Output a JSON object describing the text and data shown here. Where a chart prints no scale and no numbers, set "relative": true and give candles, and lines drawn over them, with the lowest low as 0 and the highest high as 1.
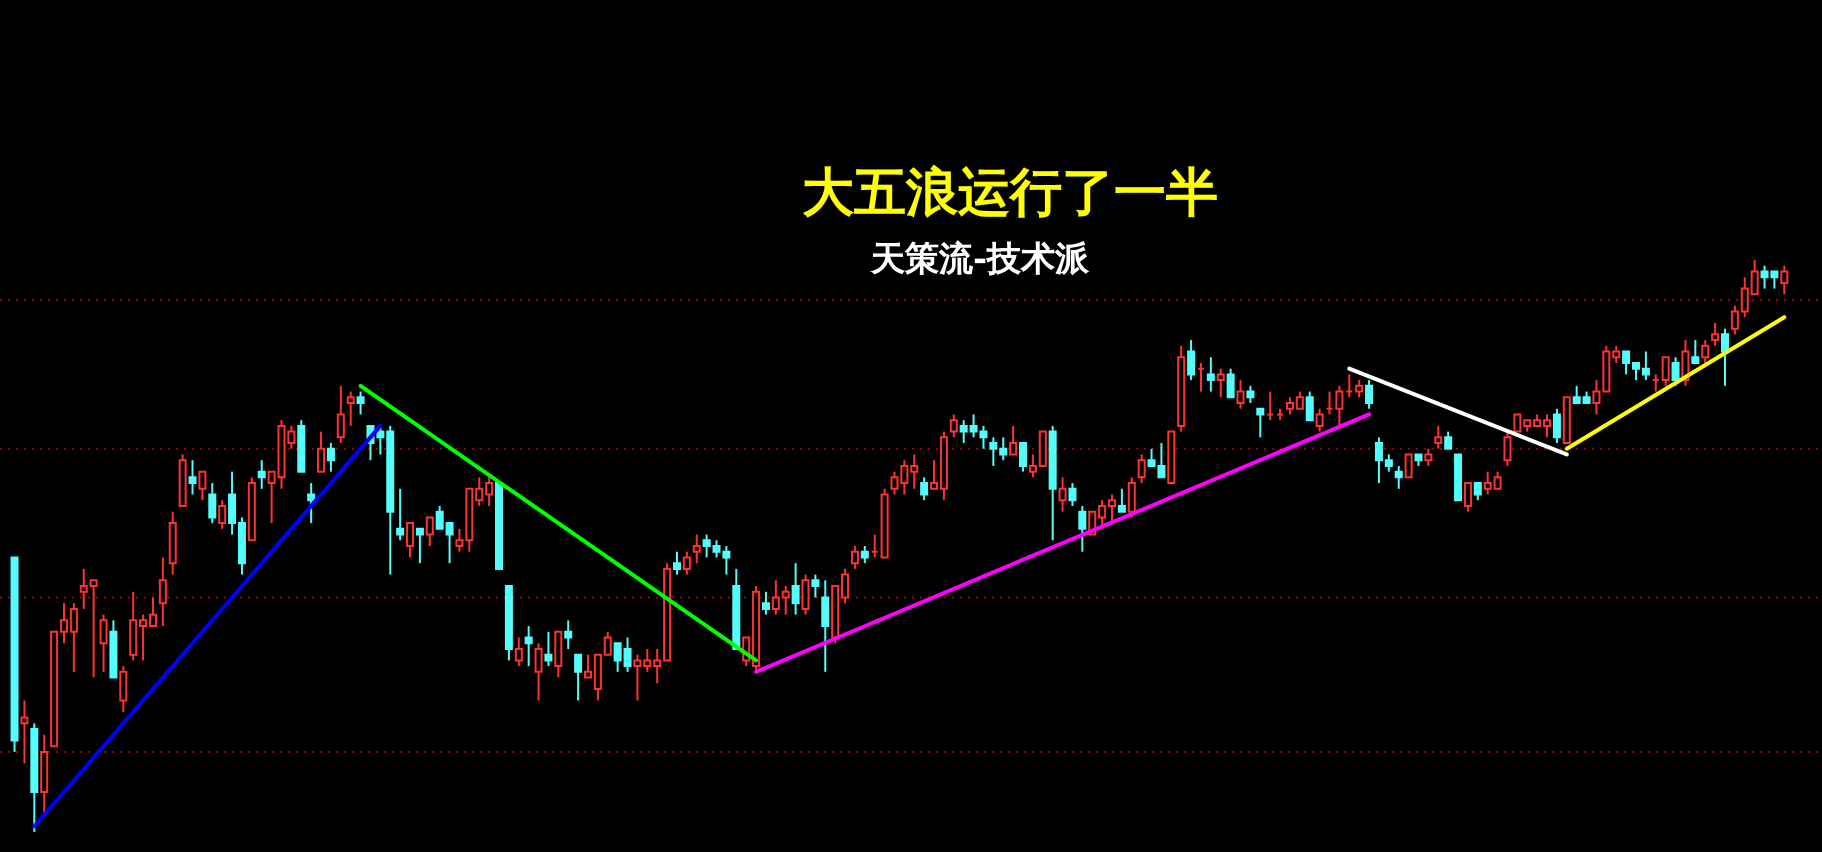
{
  "chart_data": {
    "type": "candlestick",
    "title": "大五浪运行了一半",
    "subtitle": "天策流-技术派",
    "relative": true,
    "categories": [
      null,
      null,
      null,
      null,
      null,
      null,
      null,
      null,
      null,
      null,
      null,
      null,
      null,
      null,
      null,
      null,
      null,
      null,
      null,
      null,
      null,
      null,
      null,
      null,
      null,
      null,
      null,
      null,
      null,
      null,
      null,
      null,
      null,
      null,
      null,
      null,
      null,
      null,
      null,
      null,
      null,
      null,
      null,
      null,
      null,
      null,
      null,
      null,
      null,
      null,
      null,
      null,
      null,
      null,
      null,
      null,
      null,
      null,
      null,
      null,
      null,
      null,
      null,
      null,
      null,
      null,
      null,
      null,
      null,
      null,
      null,
      null,
      null,
      null,
      null,
      null,
      null,
      null,
      null,
      null,
      null,
      null,
      null,
      null,
      null,
      null,
      null,
      null,
      null,
      null,
      null,
      null,
      null,
      null,
      null,
      null,
      null,
      null,
      null,
      null,
      null,
      null,
      null,
      null,
      null,
      null,
      null,
      null,
      null,
      null,
      null,
      null,
      null,
      null,
      null,
      null,
      null,
      null,
      null,
      null,
      null,
      null,
      null,
      null,
      null,
      null,
      null,
      null,
      null,
      null,
      null,
      null,
      null,
      null,
      null,
      null,
      null,
      null,
      null,
      null,
      null,
      null,
      null,
      null,
      null,
      null,
      null,
      null,
      null,
      null,
      null,
      null,
      null,
      null,
      null,
      null,
      null,
      null,
      null,
      null,
      null,
      null,
      null,
      null,
      null,
      null,
      null,
      null,
      null,
      null,
      null,
      null,
      null,
      null,
      null,
      null,
      null,
      null,
      null,
      null
    ],
    "ohlc": [
      [
        0.48,
        0.48,
        0.14,
        0.16
      ],
      [
        0.19,
        0.23,
        0.12,
        0.2
      ],
      [
        0.18,
        0.19,
        0,
        0.07
      ],
      [
        0.07,
        0.17,
        0.03,
        0.14
      ],
      [
        0.15,
        0.35,
        0.15,
        0.35
      ],
      [
        0.35,
        0.4,
        0.33,
        0.37
      ],
      [
        0.35,
        0.4,
        0.28,
        0.39
      ],
      [
        0.42,
        0.46,
        0.39,
        0.43
      ],
      [
        0.43,
        0.44,
        0.27,
        0.44
      ],
      [
        0.33,
        0.38,
        0.28,
        0.37
      ],
      [
        0.35,
        0.37,
        0.27,
        0.27
      ],
      [
        0.23,
        0.29,
        0.21,
        0.28
      ],
      [
        0.31,
        0.42,
        0.3,
        0.37
      ],
      [
        0.36,
        0.38,
        0.3,
        0.37
      ],
      [
        0.36,
        0.41,
        0.36,
        0.38
      ],
      [
        0.4,
        0.48,
        0.36,
        0.44
      ],
      [
        0.47,
        0.56,
        0.45,
        0.54
      ],
      [
        0.57,
        0.66,
        0.57,
        0.65
      ],
      [
        0.62,
        0.65,
        0.59,
        0.61
      ],
      [
        0.6,
        0.63,
        0.58,
        0.63
      ],
      [
        0.59,
        0.61,
        0.54,
        0.55
      ],
      [
        0.54,
        0.58,
        0.53,
        0.57
      ],
      [
        0.59,
        0.63,
        0.52,
        0.54
      ],
      [
        0.54,
        0.55,
        0.45,
        0.47
      ],
      [
        0.51,
        0.62,
        0.51,
        0.61
      ],
      [
        0.63,
        0.65,
        0.6,
        0.62
      ],
      [
        0.61,
        0.63,
        0.54,
        0.63
      ],
      [
        0.62,
        0.72,
        0.6,
        0.71
      ],
      [
        0.68,
        0.71,
        0.67,
        0.7
      ],
      [
        0.71,
        0.72,
        0.63,
        0.63
      ],
      [
        0.59,
        0.61,
        0.54,
        0.58
      ],
      [
        0.63,
        0.7,
        0.63,
        0.67
      ],
      [
        0.67,
        0.68,
        0.63,
        0.65
      ],
      [
        0.69,
        0.78,
        0.68,
        0.73
      ],
      [
        0.75,
        0.77,
        0.71,
        0.76
      ],
      [
        0.76,
        0.77,
        0.73,
        0.75
      ],
      [
        0.71,
        0.71,
        0.65,
        0.68
      ],
      [
        0.7,
        0.71,
        0.66,
        0.69
      ],
      [
        0.7,
        0.71,
        0.45,
        0.56
      ],
      [
        0.53,
        0.6,
        0.51,
        0.52
      ],
      [
        0.5,
        0.54,
        0.48,
        0.54
      ],
      [
        0.53,
        0.53,
        0.47,
        0.52
      ],
      [
        0.52,
        0.55,
        0.5,
        0.55
      ],
      [
        0.56,
        0.57,
        0.53,
        0.53
      ],
      [
        0.54,
        0.54,
        0.47,
        0.52
      ],
      [
        0.5,
        0.53,
        0.49,
        0.51
      ],
      [
        0.51,
        0.6,
        0.49,
        0.6
      ],
      [
        0.58,
        0.62,
        0.57,
        0.6
      ],
      [
        0.59,
        0.62,
        0.57,
        0.61
      ],
      [
        0.61,
        0.61,
        0.46,
        0.46
      ],
      [
        0.43,
        0.43,
        0.3,
        0.32
      ],
      [
        0.3,
        0.34,
        0.29,
        0.32
      ],
      [
        0.34,
        0.36,
        0.29,
        0.33
      ],
      [
        0.28,
        0.33,
        0.23,
        0.32
      ],
      [
        0.31,
        0.35,
        0.29,
        0.3
      ],
      [
        0.29,
        0.35,
        0.27,
        0.35
      ],
      [
        0.35,
        0.37,
        0.32,
        0.34
      ],
      [
        0.31,
        0.31,
        0.23,
        0.28
      ],
      [
        0.27,
        0.31,
        0.27,
        0.28
      ],
      [
        0.25,
        0.31,
        0.23,
        0.31
      ],
      [
        0.31,
        0.35,
        0.31,
        0.34
      ],
      [
        0.33,
        0.33,
        0.28,
        0.3
      ],
      [
        0.32,
        0.34,
        0.28,
        0.29
      ],
      [
        0.29,
        0.31,
        0.23,
        0.3
      ],
      [
        0.29,
        0.32,
        0.28,
        0.3
      ],
      [
        0.29,
        0.32,
        0.26,
        0.3
      ],
      [
        0.3,
        0.47,
        0.3,
        0.46
      ],
      [
        0.47,
        0.49,
        0.45,
        0.46
      ],
      [
        0.46,
        0.49,
        0.45,
        0.48
      ],
      [
        0.49,
        0.52,
        0.47,
        0.5
      ],
      [
        0.51,
        0.52,
        0.48,
        0.5
      ],
      [
        0.5,
        0.51,
        0.48,
        0.49
      ],
      [
        0.49,
        0.5,
        0.45,
        0.48
      ],
      [
        0.43,
        0.46,
        0.32,
        0.32
      ],
      [
        0.3,
        0.34,
        0.29,
        0.34
      ],
      [
        0.29,
        0.43,
        0.28,
        0.42
      ],
      [
        0.4,
        0.42,
        0.38,
        0.39
      ],
      [
        0.39,
        0.44,
        0.38,
        0.41
      ],
      [
        0.41,
        0.43,
        0.38,
        0.42
      ],
      [
        0.43,
        0.47,
        0.38,
        0.4
      ],
      [
        0.39,
        0.45,
        0.38,
        0.44
      ],
      [
        0.44,
        0.45,
        0.41,
        0.43
      ],
      [
        0.41,
        0.44,
        0.28,
        0.36
      ],
      [
        0.34,
        0.43,
        0.33,
        0.43
      ],
      [
        0.41,
        0.46,
        0.4,
        0.45
      ],
      [
        0.47,
        0.5,
        0.46,
        0.49
      ],
      [
        0.49,
        0.5,
        0.47,
        0.48
      ],
      [
        0.49,
        0.52,
        0.48,
        0.49
      ],
      [
        0.48,
        0.6,
        0.48,
        0.59
      ],
      [
        0.6,
        0.63,
        0.59,
        0.62
      ],
      [
        0.61,
        0.65,
        0.59,
        0.64
      ],
      [
        0.63,
        0.66,
        0.6,
        0.64
      ],
      [
        0.61,
        0.62,
        0.58,
        0.59
      ],
      [
        0.6,
        0.65,
        0.6,
        0.61
      ],
      [
        0.6,
        0.7,
        0.58,
        0.69
      ],
      [
        0.7,
        0.73,
        0.69,
        0.72
      ],
      [
        0.71,
        0.72,
        0.68,
        0.7
      ],
      [
        0.71,
        0.73,
        0.69,
        0.7
      ],
      [
        0.7,
        0.71,
        0.67,
        0.69
      ],
      [
        0.68,
        0.69,
        0.64,
        0.67
      ],
      [
        0.67,
        0.69,
        0.65,
        0.66
      ],
      [
        0.66,
        0.71,
        0.66,
        0.68
      ],
      [
        0.68,
        0.68,
        0.63,
        0.64
      ],
      [
        0.63,
        0.66,
        0.62,
        0.64
      ],
      [
        0.64,
        0.7,
        0.64,
        0.7
      ],
      [
        0.7,
        0.71,
        0.51,
        0.6
      ],
      [
        0.58,
        0.62,
        0.56,
        0.6
      ],
      [
        0.6,
        0.61,
        0.57,
        0.58
      ],
      [
        0.56,
        0.57,
        0.49,
        0.53
      ],
      [
        0.52,
        0.56,
        0.52,
        0.56
      ],
      [
        0.55,
        0.58,
        0.53,
        0.57
      ],
      [
        0.57,
        0.59,
        0.54,
        0.58
      ],
      [
        0.57,
        0.6,
        0.56,
        0.56
      ],
      [
        0.56,
        0.62,
        0.55,
        0.61
      ],
      [
        0.62,
        0.66,
        0.61,
        0.65
      ],
      [
        0.65,
        0.67,
        0.64,
        0.64
      ],
      [
        0.64,
        0.68,
        0.62,
        0.62
      ],
      [
        0.61,
        0.7,
        0.61,
        0.7
      ],
      [
        0.71,
        0.85,
        0.7,
        0.83
      ],
      [
        0.84,
        0.86,
        0.79,
        0.8
      ],
      [
        0.81,
        0.82,
        0.77,
        0.81
      ],
      [
        0.8,
        0.83,
        0.77,
        0.79
      ],
      [
        0.79,
        0.81,
        0.76,
        0.8
      ],
      [
        0.8,
        0.81,
        0.76,
        0.76
      ],
      [
        0.75,
        0.79,
        0.74,
        0.77
      ],
      [
        0.77,
        0.78,
        0.75,
        0.76
      ],
      [
        0.74,
        0.74,
        0.69,
        0.73
      ],
      [
        0.73,
        0.77,
        0.72,
        0.73
      ],
      [
        0.73,
        0.74,
        0.72,
        0.73
      ],
      [
        0.74,
        0.76,
        0.73,
        0.75
      ],
      [
        0.74,
        0.77,
        0.74,
        0.76
      ],
      [
        0.76,
        0.77,
        0.72,
        0.72
      ],
      [
        0.71,
        0.74,
        0.7,
        0.73
      ],
      [
        0.74,
        0.77,
        0.73,
        0.74
      ],
      [
        0.74,
        0.78,
        0.71,
        0.77
      ],
      [
        0.77,
        0.8,
        0.76,
        0.77
      ],
      [
        0.77,
        0.79,
        0.76,
        0.78
      ],
      [
        0.78,
        0.79,
        0.74,
        0.75
      ],
      [
        0.68,
        0.69,
        0.61,
        0.65
      ],
      [
        0.65,
        0.66,
        0.63,
        0.64
      ],
      [
        0.63,
        0.64,
        0.6,
        0.62
      ],
      [
        0.62,
        0.66,
        0.62,
        0.66
      ],
      [
        0.66,
        0.66,
        0.64,
        0.65
      ],
      [
        0.65,
        0.67,
        0.64,
        0.66
      ],
      [
        0.68,
        0.71,
        0.67,
        0.69
      ],
      [
        0.69,
        0.7,
        0.67,
        0.67
      ],
      [
        0.66,
        0.66,
        0.58,
        0.58
      ],
      [
        0.57,
        0.61,
        0.56,
        0.61
      ],
      [
        0.61,
        0.61,
        0.58,
        0.59
      ],
      [
        0.6,
        0.63,
        0.59,
        0.61
      ],
      [
        0.6,
        0.63,
        0.6,
        0.62
      ],
      [
        0.65,
        0.7,
        0.64,
        0.69
      ],
      [
        0.7,
        0.73,
        0.7,
        0.73
      ],
      [
        0.71,
        0.72,
        0.7,
        0.72
      ],
      [
        0.71,
        0.73,
        0.71,
        0.72
      ],
      [
        0.71,
        0.73,
        0.69,
        0.72
      ],
      [
        0.73,
        0.74,
        0.68,
        0.69
      ],
      [
        0.68,
        0.76,
        0.68,
        0.76
      ],
      [
        0.76,
        0.78,
        0.75,
        0.75
      ],
      [
        0.76,
        0.77,
        0.75,
        0.75
      ],
      [
        0.75,
        0.79,
        0.73,
        0.77
      ],
      [
        0.77,
        0.85,
        0.77,
        0.84
      ],
      [
        0.83,
        0.85,
        0.82,
        0.84
      ],
      [
        0.84,
        0.84,
        0.8,
        0.82
      ],
      [
        0.82,
        0.82,
        0.79,
        0.81
      ],
      [
        0.81,
        0.84,
        0.79,
        0.8
      ],
      [
        0.79,
        0.8,
        0.77,
        0.79
      ],
      [
        0.79,
        0.83,
        0.78,
        0.83
      ],
      [
        0.82,
        0.83,
        0.78,
        0.79
      ],
      [
        0.79,
        0.86,
        0.78,
        0.84
      ],
      [
        0.83,
        0.86,
        0.82,
        0.82
      ],
      [
        0.83,
        0.86,
        0.82,
        0.85
      ],
      [
        0.86,
        0.89,
        0.85,
        0.87
      ],
      [
        0.87,
        0.88,
        0.78,
        0.84
      ],
      [
        0.88,
        0.92,
        0.87,
        0.91
      ],
      [
        0.91,
        0.97,
        0.9,
        0.95
      ],
      [
        0.94,
        1.0,
        0.94,
        0.98
      ],
      [
        0.98,
        0.99,
        0.95,
        0.97
      ],
      [
        0.98,
        0.98,
        0.95,
        0.97
      ],
      [
        0.96,
        0.99,
        0.94,
        0.98
      ]
    ],
    "colors": [
      "#54fcfc",
      "#ff3232",
      "#54fcfc",
      "#ff3232",
      "#ff3232",
      "#ff3232",
      "#ff3232",
      "#ff3232",
      "#ff3232",
      "#ff3232",
      "#54fcfc",
      "#ff3232",
      "#ff3232",
      "#ff3232",
      "#ff3232",
      "#ff3232",
      "#ff3232",
      "#ff3232",
      "#54fcfc",
      "#ff3232",
      "#54fcfc",
      "#ff3232",
      "#54fcfc",
      "#54fcfc",
      "#ff3232",
      "#54fcfc",
      "#ff3232",
      "#ff3232",
      "#ff3232",
      "#54fcfc",
      "#54fcfc",
      "#ff3232",
      "#54fcfc",
      "#ff3232",
      "#ff3232",
      "#54fcfc",
      "#54fcfc",
      "#54fcfc",
      "#54fcfc",
      "#54fcfc",
      "#ff3232",
      "#54fcfc",
      "#ff3232",
      "#54fcfc",
      "#54fcfc",
      "#ff3232",
      "#ff3232",
      "#ff3232",
      "#ff3232",
      "#54fcfc",
      "#54fcfc",
      "#ff3232",
      "#54fcfc",
      "#ff3232",
      "#54fcfc",
      "#ff3232",
      "#54fcfc",
      "#54fcfc",
      "#ff3232",
      "#ff3232",
      "#ff3232",
      "#54fcfc",
      "#54fcfc",
      "#ff3232",
      "#ff3232",
      "#ff3232",
      "#ff3232",
      "#54fcfc",
      "#ff3232",
      "#ff3232",
      "#54fcfc",
      "#54fcfc",
      "#54fcfc",
      "#54fcfc",
      "#ff3232",
      "#ff3232",
      "#54fcfc",
      "#ff3232",
      "#ff3232",
      "#54fcfc",
      "#ff3232",
      "#54fcfc",
      "#54fcfc",
      "#ff3232",
      "#ff3232",
      "#ff3232",
      "#54fcfc",
      "#ff3232",
      "#ff3232",
      "#ff3232",
      "#ff3232",
      "#ff3232",
      "#54fcfc",
      "#ff3232",
      "#ff3232",
      "#ff3232",
      "#54fcfc",
      "#54fcfc",
      "#54fcfc",
      "#54fcfc",
      "#54fcfc",
      "#ff3232",
      "#54fcfc",
      "#ff3232",
      "#ff3232",
      "#54fcfc",
      "#ff3232",
      "#54fcfc",
      "#54fcfc",
      "#ff3232",
      "#ff3232",
      "#ff3232",
      "#54fcfc",
      "#ff3232",
      "#ff3232",
      "#54fcfc",
      "#54fcfc",
      "#ff3232",
      "#ff3232",
      "#54fcfc",
      "#ff3232",
      "#54fcfc",
      "#ff3232",
      "#54fcfc",
      "#ff3232",
      "#54fcfc",
      "#54fcfc",
      "#ff3232",
      "#ff3232",
      "#ff3232",
      "#ff3232",
      "#54fcfc",
      "#ff3232",
      "#ff3232",
      "#ff3232",
      "#ff3232",
      "#ff3232",
      "#54fcfc",
      "#54fcfc",
      "#54fcfc",
      "#54fcfc",
      "#ff3232",
      "#54fcfc",
      "#ff3232",
      "#ff3232",
      "#54fcfc",
      "#54fcfc",
      "#ff3232",
      "#54fcfc",
      "#ff3232",
      "#ff3232",
      "#ff3232",
      "#ff3232",
      "#ff3232",
      "#ff3232",
      "#ff3232",
      "#54fcfc",
      "#ff3232",
      "#54fcfc",
      "#54fcfc",
      "#ff3232",
      "#ff3232",
      "#ff3232",
      "#54fcfc",
      "#54fcfc",
      "#54fcfc",
      "#ff3232",
      "#ff3232",
      "#54fcfc",
      "#ff3232",
      "#54fcfc",
      "#ff3232",
      "#ff3232",
      "#54fcfc",
      "#ff3232",
      "#ff3232",
      "#ff3232",
      "#54fcfc",
      "#54fcfc",
      "#ff3232"
    ],
    "series": [
      {
        "type": "line",
        "color": "#0000ff",
        "values": [
          null,
          null,
          0.01,
          null,
          null,
          null,
          null,
          null,
          null,
          null,
          null,
          null,
          null,
          null,
          null,
          null,
          null,
          null,
          null,
          null,
          null,
          null,
          null,
          null,
          null,
          null,
          null,
          null,
          null,
          null,
          null,
          null,
          null,
          null,
          null,
          null,
          null,
          0.71,
          null,
          null,
          null,
          null,
          null,
          null,
          null,
          null,
          null,
          null,
          null,
          null,
          null,
          null,
          null,
          null,
          null,
          null,
          null,
          null,
          null,
          null,
          null,
          null,
          null,
          null,
          null,
          null,
          null,
          null,
          null,
          null,
          null,
          null,
          null,
          null,
          null,
          null,
          null,
          null,
          null,
          null,
          null,
          null,
          null,
          null,
          null,
          null,
          null,
          null,
          null,
          null,
          null,
          null,
          null,
          null,
          null,
          null,
          null,
          null,
          null,
          null,
          null,
          null,
          null,
          null,
          null,
          null,
          null,
          null,
          null,
          null,
          null,
          null,
          null,
          null,
          null,
          null,
          null,
          null,
          null,
          null,
          null,
          null,
          null,
          null,
          null,
          null,
          null,
          null,
          null,
          null,
          null,
          null,
          null,
          null,
          null,
          null,
          null,
          null,
          null,
          null,
          null,
          null,
          null,
          null,
          null,
          null,
          null,
          null,
          null,
          null,
          null,
          null,
          null,
          null,
          null,
          null,
          null,
          null,
          null,
          null,
          null,
          null,
          null,
          null,
          null,
          null,
          null,
          null,
          null,
          null,
          null,
          null,
          null,
          null,
          null,
          null,
          null,
          null,
          null,
          null
        ]
      },
      {
        "type": "line",
        "color": "#00ff00",
        "values": [
          null,
          null,
          null,
          null,
          null,
          null,
          null,
          null,
          null,
          null,
          null,
          null,
          null,
          null,
          null,
          null,
          null,
          null,
          null,
          null,
          null,
          null,
          null,
          null,
          null,
          null,
          null,
          null,
          null,
          null,
          null,
          null,
          null,
          null,
          null,
          0.78,
          null,
          null,
          null,
          null,
          null,
          null,
          null,
          null,
          null,
          null,
          null,
          null,
          null,
          null,
          null,
          null,
          null,
          null,
          null,
          null,
          null,
          null,
          null,
          null,
          null,
          null,
          null,
          null,
          null,
          null,
          null,
          null,
          null,
          null,
          null,
          null,
          null,
          null,
          null,
          0.3,
          null,
          null,
          null,
          null,
          null,
          null,
          null,
          null,
          null,
          null,
          null,
          null,
          null,
          null,
          null,
          null,
          null,
          null,
          null,
          null,
          null,
          null,
          null,
          null,
          null,
          null,
          null,
          null,
          null,
          null,
          null,
          null,
          null,
          null,
          null,
          null,
          null,
          null,
          null,
          null,
          null,
          null,
          null,
          null,
          null,
          null,
          null,
          null,
          null,
          null,
          null,
          null,
          null,
          null,
          null,
          null,
          null,
          null,
          null,
          null,
          null,
          null,
          null,
          null,
          null,
          null,
          null,
          null,
          null,
          null,
          null,
          null,
          null,
          null,
          null,
          null,
          null,
          null,
          null,
          null,
          null,
          null,
          null,
          null,
          null,
          null,
          null,
          null,
          null,
          null,
          null,
          null,
          null,
          null,
          null,
          null,
          null,
          null,
          null,
          null,
          null,
          null,
          null,
          null
        ]
      },
      {
        "type": "line",
        "color": "#ff00ff",
        "values": [
          null,
          null,
          null,
          null,
          null,
          null,
          null,
          null,
          null,
          null,
          null,
          null,
          null,
          null,
          null,
          null,
          null,
          null,
          null,
          null,
          null,
          null,
          null,
          null,
          null,
          null,
          null,
          null,
          null,
          null,
          null,
          null,
          null,
          null,
          null,
          null,
          null,
          null,
          null,
          null,
          null,
          null,
          null,
          null,
          null,
          null,
          null,
          null,
          null,
          null,
          null,
          null,
          null,
          null,
          null,
          null,
          null,
          null,
          null,
          null,
          null,
          null,
          null,
          null,
          null,
          null,
          null,
          null,
          null,
          null,
          null,
          null,
          null,
          null,
          null,
          0.28,
          null,
          null,
          null,
          null,
          null,
          null,
          null,
          null,
          null,
          null,
          null,
          null,
          null,
          null,
          null,
          null,
          null,
          null,
          null,
          null,
          null,
          null,
          null,
          null,
          null,
          null,
          null,
          null,
          null,
          null,
          null,
          null,
          null,
          null,
          null,
          null,
          null,
          null,
          null,
          null,
          null,
          null,
          null,
          null,
          null,
          null,
          null,
          null,
          null,
          null,
          null,
          null,
          null,
          null,
          null,
          null,
          null,
          null,
          null,
          null,
          null,
          0.73,
          null,
          null,
          null,
          null,
          null,
          null,
          null,
          null,
          null,
          null,
          null,
          null,
          null,
          null,
          null,
          null,
          null,
          null,
          null,
          null,
          null,
          null,
          null,
          null,
          null,
          null,
          null,
          null,
          null,
          null,
          null,
          null,
          null,
          null,
          null,
          null,
          null,
          null,
          null,
          null,
          null,
          null
        ]
      },
      {
        "type": "line",
        "color": "#ffffff",
        "values": [
          null,
          null,
          null,
          null,
          null,
          null,
          null,
          null,
          null,
          null,
          null,
          null,
          null,
          null,
          null,
          null,
          null,
          null,
          null,
          null,
          null,
          null,
          null,
          null,
          null,
          null,
          null,
          null,
          null,
          null,
          null,
          null,
          null,
          null,
          null,
          null,
          null,
          null,
          null,
          null,
          null,
          null,
          null,
          null,
          null,
          null,
          null,
          null,
          null,
          null,
          null,
          null,
          null,
          null,
          null,
          null,
          null,
          null,
          null,
          null,
          null,
          null,
          null,
          null,
          null,
          null,
          null,
          null,
          null,
          null,
          null,
          null,
          null,
          null,
          null,
          null,
          null,
          null,
          null,
          null,
          null,
          null,
          null,
          null,
          null,
          null,
          null,
          null,
          null,
          null,
          null,
          null,
          null,
          null,
          null,
          null,
          null,
          null,
          null,
          null,
          null,
          null,
          null,
          null,
          null,
          null,
          null,
          null,
          null,
          null,
          null,
          null,
          null,
          null,
          null,
          null,
          null,
          null,
          null,
          null,
          null,
          null,
          null,
          null,
          null,
          null,
          null,
          null,
          null,
          null,
          null,
          null,
          null,
          null,
          null,
          0.81,
          null,
          null,
          null,
          null,
          null,
          null,
          null,
          null,
          null,
          null,
          null,
          null,
          null,
          null,
          null,
          null,
          null,
          null,
          null,
          null,
          null,
          0.66,
          null,
          null,
          null,
          null,
          null,
          null,
          null,
          null,
          null,
          null,
          null,
          null,
          null,
          null,
          null,
          null,
          null,
          null,
          null,
          null,
          null,
          null
        ]
      },
      {
        "type": "line",
        "color": "#ffff00",
        "values": [
          null,
          null,
          null,
          null,
          null,
          null,
          null,
          null,
          null,
          null,
          null,
          null,
          null,
          null,
          null,
          null,
          null,
          null,
          null,
          null,
          null,
          null,
          null,
          null,
          null,
          null,
          null,
          null,
          null,
          null,
          null,
          null,
          null,
          null,
          null,
          null,
          null,
          null,
          null,
          null,
          null,
          null,
          null,
          null,
          null,
          null,
          null,
          null,
          null,
          null,
          null,
          null,
          null,
          null,
          null,
          null,
          null,
          null,
          null,
          null,
          null,
          null,
          null,
          null,
          null,
          null,
          null,
          null,
          null,
          null,
          null,
          null,
          null,
          null,
          null,
          null,
          null,
          null,
          null,
          null,
          null,
          null,
          null,
          null,
          null,
          null,
          null,
          null,
          null,
          null,
          null,
          null,
          null,
          null,
          null,
          null,
          null,
          null,
          null,
          null,
          null,
          null,
          null,
          null,
          null,
          null,
          null,
          null,
          null,
          null,
          null,
          null,
          null,
          null,
          null,
          null,
          null,
          null,
          null,
          null,
          null,
          null,
          null,
          null,
          null,
          null,
          null,
          null,
          null,
          null,
          null,
          null,
          null,
          null,
          null,
          null,
          null,
          null,
          null,
          null,
          null,
          null,
          null,
          null,
          null,
          null,
          null,
          null,
          null,
          null,
          null,
          null,
          null,
          null,
          null,
          null,
          null,
          0.67,
          null,
          null,
          null,
          null,
          null,
          null,
          null,
          null,
          null,
          null,
          null,
          null,
          null,
          null,
          null,
          null,
          null,
          null,
          null,
          null,
          null,
          0.9
        ]
      }
    ],
    "ref_lines": [
      {
        "axis": "y",
        "value": 0.14,
        "color": "#a00000",
        "line_style": "dotted"
      },
      {
        "axis": "y",
        "value": 0.41,
        "color": "#a00000",
        "line_style": "dotted"
      },
      {
        "axis": "y",
        "value": 0.67,
        "color": "#a00000",
        "line_style": "dotted"
      },
      {
        "axis": "y",
        "value": 0.93,
        "color": "#a00000",
        "line_style": "dotted"
      }
    ]
  }
}
